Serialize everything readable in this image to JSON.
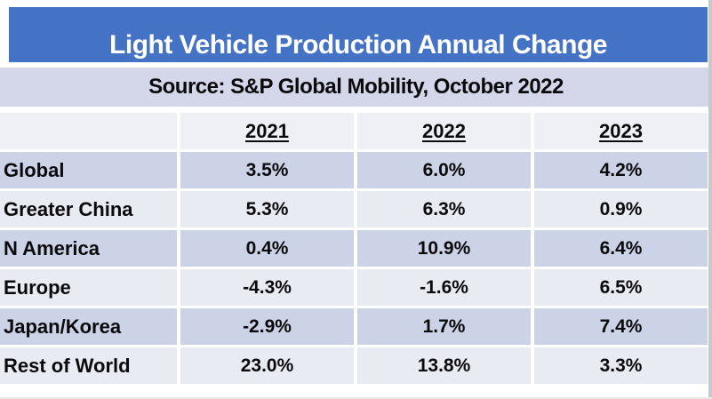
{
  "title": "Light Vehicle Production Annual Change",
  "source_line": "Source: S&P Global Mobility, October 2022",
  "chart_data": {
    "type": "table",
    "title": "Light Vehicle Production Annual Change",
    "subtitle": "Source: S&P Global Mobility, October 2022",
    "columns": [
      "2021",
      "2022",
      "2023"
    ],
    "rows": [
      {
        "label": "Global",
        "values": [
          "3.5%",
          "6.0%",
          "4.2%"
        ]
      },
      {
        "label": "Greater China",
        "values": [
          "5.3%",
          "6.3%",
          "0.9%"
        ]
      },
      {
        "label": "N America",
        "values": [
          "0.4%",
          "10.9%",
          "6.4%"
        ]
      },
      {
        "label": "Europe",
        "values": [
          "-4.3%",
          "-1.6%",
          "6.5%"
        ]
      },
      {
        "label": "Japan/Korea",
        "values": [
          "-2.9%",
          "1.7%",
          "7.4%"
        ]
      },
      {
        "label": "Rest of World",
        "values": [
          "23.0%",
          "13.8%",
          "3.3%"
        ]
      }
    ]
  },
  "colors": {
    "title_band": "#4472C4",
    "title_text": "#FFFFFF",
    "source_band": "#D4D7E9",
    "row_lavender": "#CDD3E6",
    "row_light": "#E9EBF2",
    "text": "#0B0B0D"
  }
}
